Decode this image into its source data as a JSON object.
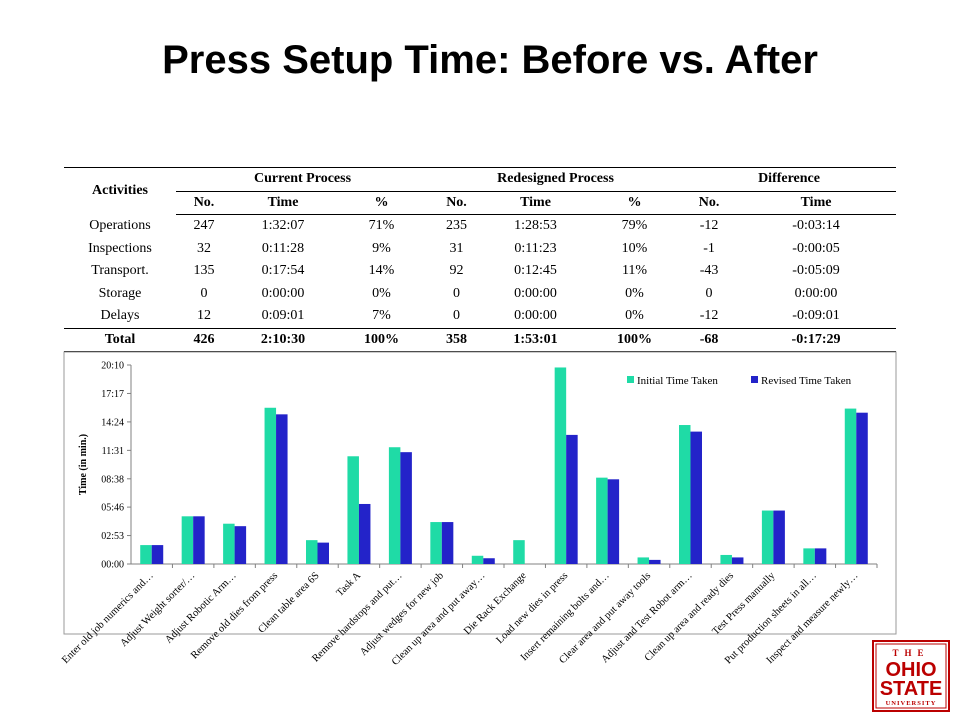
{
  "slide": {
    "title": "Press Setup Time: Before vs. After"
  },
  "table": {
    "header_activities": "Activities",
    "groups": [
      "Current Process",
      "Redesigned Process",
      "Difference"
    ],
    "subheaders": [
      "No.",
      "Time",
      "%",
      "No.",
      "Time",
      "%",
      "No.",
      "Time"
    ],
    "rows": [
      [
        "Operations",
        "247",
        "1:32:07",
        "71%",
        "235",
        "1:28:53",
        "79%",
        "-12",
        "-0:03:14"
      ],
      [
        "Inspections",
        "32",
        "0:11:28",
        "9%",
        "31",
        "0:11:23",
        "10%",
        "-1",
        "-0:00:05"
      ],
      [
        "Transport.",
        "135",
        "0:17:54",
        "14%",
        "92",
        "0:12:45",
        "11%",
        "-43",
        "-0:05:09"
      ],
      [
        "Storage",
        "0",
        "0:00:00",
        "0%",
        "0",
        "0:00:00",
        "0%",
        "0",
        "0:00:00"
      ],
      [
        "Delays",
        "12",
        "0:09:01",
        "7%",
        "0",
        "0:00:00",
        "0%",
        "-12",
        "-0:09:01"
      ]
    ],
    "total": [
      "Total",
      "426",
      "2:10:30",
      "100%",
      "358",
      "1:53:01",
      "100%",
      "-68",
      "-0:17:29"
    ]
  },
  "chart_data": {
    "type": "bar",
    "ylabel": "Time (in min.)",
    "xlabel": "",
    "ylim": [
      "00:00",
      "20:10"
    ],
    "y_ticks": [
      "00:00",
      "02:53",
      "05:46",
      "08:38",
      "11:31",
      "14:24",
      "17:17",
      "20:10"
    ],
    "legend_position": "top-right",
    "grid": false,
    "categories": [
      "Enter old job numerics and…",
      "Adjust Weight sorter/…",
      "Adjust Robotic Arm…",
      "Remove old dies from press",
      "Clean table area 6S",
      "Task A",
      "Remove hardstops and put…",
      "Adjust wedges for new job",
      "Clean up area and put away…",
      "Die Rack Exchange",
      "Load new dies in press",
      "Insert remaining bolts and…",
      "Clear area and put away tools",
      "Adjust and Test Robot arm…",
      "Clean up area and ready dies",
      "Test Press manually",
      "Put production sheets in all…",
      "Inspect and measure newly…"
    ],
    "series": [
      {
        "name": "Initial Time Taken",
        "color": "#1fdba6",
        "values": [
          "01:55",
          "04:50",
          "04:05",
          "15:50",
          "02:25",
          "10:55",
          "11:50",
          "04:15",
          "00:50",
          "02:25",
          "19:55",
          "08:45",
          "00:40",
          "14:05",
          "00:55",
          "05:25",
          "01:35",
          "15:45"
        ]
      },
      {
        "name": "Revised Time Taken",
        "color": "#2323c9",
        "values": [
          "01:55",
          "04:50",
          "03:50",
          "15:10",
          "02:10",
          "06:05",
          "11:20",
          "04:15",
          "00:35",
          "00:00",
          "13:05",
          "08:35",
          "00:25",
          "13:25",
          "00:40",
          "05:25",
          "01:35",
          "15:20"
        ]
      }
    ]
  },
  "logo": {
    "line1": "THE",
    "line2": "OHIO",
    "line3": "STATE",
    "line4": "UNIVERSITY",
    "color": "#bb0000"
  }
}
